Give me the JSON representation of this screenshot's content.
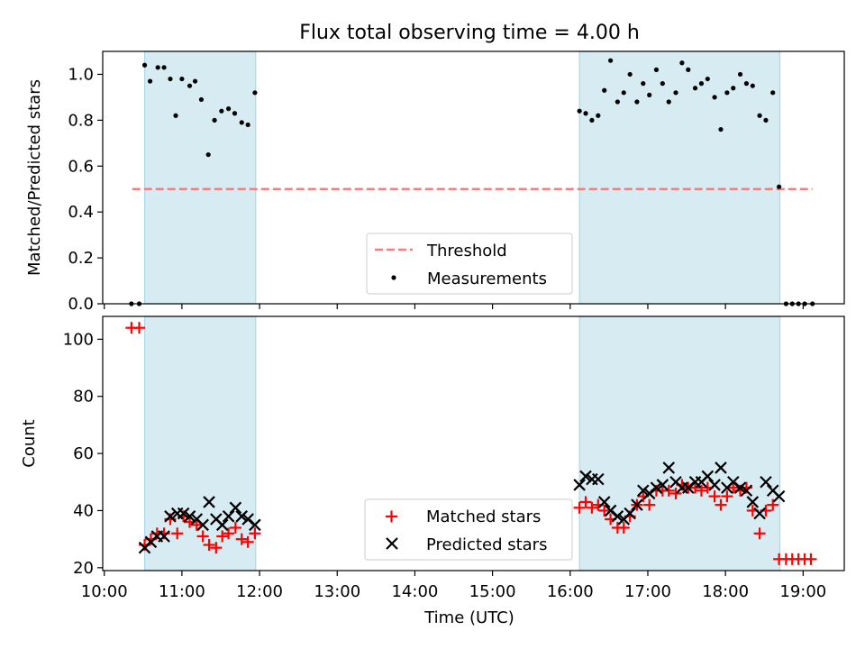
{
  "title": "Flux total observing time = 4.00 h",
  "chart_data": [
    {
      "type": "scatter",
      "ylabel": "Matched/Predicted stars",
      "ylim": [
        0,
        1.1
      ],
      "yticks": [
        "0.0",
        "0.2",
        "0.4",
        "0.6",
        "0.8",
        "1.0"
      ],
      "yticks_values": [
        0,
        0.2,
        0.4,
        0.6,
        0.8,
        1.0
      ],
      "xlim": [
        9.98,
        19.53
      ],
      "xticks_values": [
        10,
        11,
        12,
        13,
        14,
        15,
        16,
        17,
        18,
        19
      ],
      "shaded_intervals": [
        [
          10.52,
          11.95
        ],
        [
          16.12,
          18.7
        ]
      ],
      "shade_color": "#add8e6",
      "threshold": {
        "name": "Threshold",
        "value": 0.5,
        "x_range": [
          10.36,
          19.12
        ],
        "color": "#f08080"
      },
      "series": [
        {
          "name": "Measurements",
          "color": "#000000",
          "x": [
            10.35,
            10.45,
            10.52,
            10.59,
            10.69,
            10.77,
            10.85,
            10.92,
            11.0,
            11.1,
            11.17,
            11.25,
            11.34,
            11.42,
            11.51,
            11.6,
            11.68,
            11.77,
            11.85,
            11.94,
            16.12,
            16.2,
            16.28,
            16.36,
            16.44,
            16.52,
            16.61,
            16.69,
            16.77,
            16.86,
            16.94,
            17.02,
            17.11,
            17.19,
            17.27,
            17.36,
            17.44,
            17.52,
            17.61,
            17.69,
            17.77,
            17.86,
            17.94,
            18.02,
            18.1,
            18.19,
            18.27,
            18.35,
            18.44,
            18.52,
            18.61,
            18.69,
            18.78,
            18.86,
            18.94,
            19.02,
            19.12
          ],
          "y": [
            0.0,
            0.0,
            1.04,
            0.97,
            1.03,
            1.03,
            0.98,
            0.82,
            0.98,
            0.95,
            0.97,
            0.89,
            0.65,
            0.8,
            0.84,
            0.85,
            0.83,
            0.79,
            0.78,
            0.92,
            0.84,
            0.83,
            0.8,
            0.82,
            0.93,
            1.06,
            0.88,
            0.92,
            1.0,
            0.88,
            0.96,
            0.91,
            1.02,
            0.96,
            0.88,
            0.92,
            1.05,
            1.02,
            0.94,
            0.96,
            0.98,
            0.9,
            0.76,
            0.92,
            0.94,
            1.0,
            0.96,
            0.95,
            0.82,
            0.8,
            0.92,
            0.51,
            0.0,
            0.0,
            0.0,
            0.0,
            0.0
          ]
        }
      ],
      "legend": {
        "position": "lower-center",
        "threshold_label": "Threshold",
        "measurements_label": "Measurements"
      }
    },
    {
      "type": "scatter",
      "ylabel": "Count",
      "xlabel": "Time (UTC)",
      "ylim": [
        19,
        108
      ],
      "yticks": [
        "20",
        "40",
        "60",
        "80",
        "100"
      ],
      "yticks_values": [
        20,
        40,
        60,
        80,
        100
      ],
      "xlim": [
        9.98,
        19.53
      ],
      "xticks": [
        "10:00",
        "11:00",
        "12:00",
        "13:00",
        "14:00",
        "15:00",
        "16:00",
        "17:00",
        "18:00",
        "19:00"
      ],
      "xticks_values": [
        10,
        11,
        12,
        13,
        14,
        15,
        16,
        17,
        18,
        19
      ],
      "shaded_intervals": [
        [
          10.52,
          11.95
        ],
        [
          16.12,
          18.7
        ]
      ],
      "shade_color": "#add8e6",
      "series": [
        {
          "name": "Matched stars",
          "marker": "plus",
          "color": "#ff0000",
          "x": [
            10.35,
            10.45,
            10.52,
            10.6,
            10.68,
            10.77,
            10.85,
            10.94,
            11.02,
            11.1,
            11.19,
            11.27,
            11.35,
            11.44,
            11.52,
            11.6,
            11.69,
            11.77,
            11.85,
            11.94,
            16.12,
            16.2,
            16.28,
            16.36,
            16.44,
            16.52,
            16.61,
            16.69,
            16.77,
            16.86,
            16.94,
            17.02,
            17.11,
            17.19,
            17.27,
            17.36,
            17.44,
            17.52,
            17.61,
            17.69,
            17.77,
            17.86,
            17.94,
            18.02,
            18.1,
            18.19,
            18.27,
            18.35,
            18.44,
            18.52,
            18.61,
            18.69,
            18.78,
            18.86,
            18.94,
            19.02,
            19.1
          ],
          "y": [
            104,
            104,
            28,
            30,
            32,
            32,
            37,
            32,
            38,
            36,
            35,
            31,
            28,
            27,
            31,
            32,
            34,
            30,
            29,
            32,
            41,
            43,
            41,
            42,
            40,
            37,
            34,
            34,
            38,
            42,
            45,
            42,
            47,
            47,
            47,
            46,
            49,
            48,
            48,
            47,
            48,
            45,
            42,
            45,
            48,
            47,
            48,
            40,
            32,
            40,
            42,
            23,
            23,
            23,
            23,
            23,
            23
          ]
        },
        {
          "name": "Predicted stars",
          "marker": "x",
          "color": "#000000",
          "x": [
            10.52,
            10.6,
            10.68,
            10.77,
            10.85,
            10.94,
            11.02,
            11.1,
            11.19,
            11.27,
            11.35,
            11.44,
            11.52,
            11.6,
            11.69,
            11.77,
            11.85,
            11.94,
            16.12,
            16.2,
            16.28,
            16.36,
            16.44,
            16.52,
            16.61,
            16.69,
            16.77,
            16.86,
            16.94,
            17.02,
            17.11,
            17.19,
            17.27,
            17.36,
            17.44,
            17.52,
            17.61,
            17.69,
            17.77,
            17.86,
            17.94,
            18.02,
            18.1,
            18.19,
            18.27,
            18.35,
            18.44,
            18.52,
            18.61,
            18.69
          ],
          "y": [
            27,
            29,
            31,
            31,
            38,
            39,
            39,
            38,
            37,
            35,
            43,
            37,
            35,
            38,
            41,
            38,
            37,
            35,
            49,
            52,
            51,
            51,
            43,
            40,
            38,
            37,
            39,
            42,
            47,
            46,
            48,
            49,
            55,
            50,
            48,
            48,
            50,
            50,
            52,
            49,
            55,
            48,
            50,
            48,
            47,
            43,
            39,
            50,
            47,
            45
          ]
        }
      ],
      "legend": {
        "position": "lower-center",
        "matched_label": "Matched stars",
        "predicted_label": "Predicted stars"
      }
    }
  ]
}
